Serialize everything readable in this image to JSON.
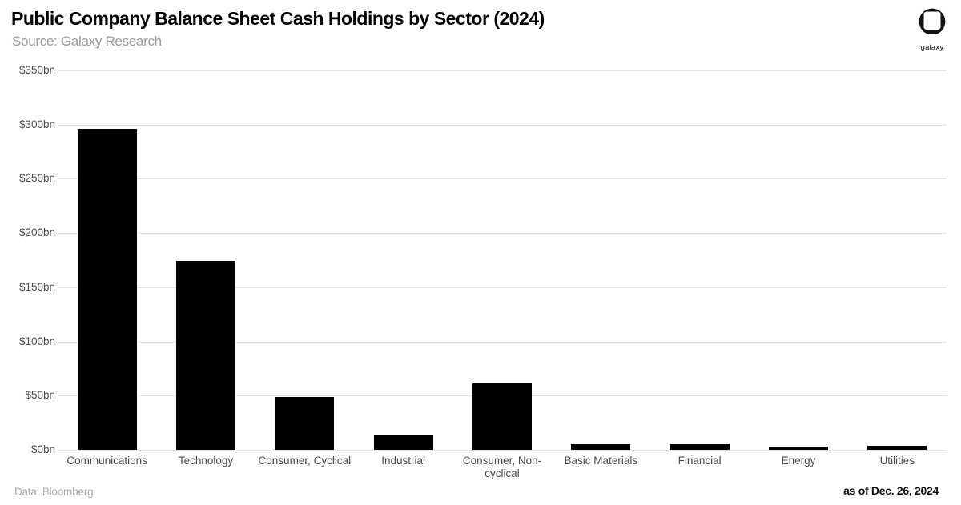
{
  "header": {
    "title": "Public Company Balance Sheet Cash Holdings by Sector (2024)",
    "subtitle": "Source: Galaxy Research"
  },
  "logo": {
    "label": "galaxy"
  },
  "footer": {
    "left": "Data: Bloomberg",
    "right": "as of Dec. 26, 2024"
  },
  "colors": {
    "bar": "#000000",
    "grid": "#e4e4e4",
    "tick_text": "#4a4a4a",
    "subtitle_text": "#9a9a9a",
    "title_text": "#000000"
  },
  "chart_data": {
    "type": "bar",
    "title": "Public Company Balance Sheet Cash Holdings by Sector (2024)",
    "subtitle": "Source: Galaxy Research",
    "categories": [
      "Communications",
      "Technology",
      "Consumer, Cyclical",
      "Industrial",
      "Consumer, Non-cyclical",
      "Basic Materials",
      "Financial",
      "Energy",
      "Utilities"
    ],
    "values": [
      296,
      174,
      49,
      13,
      61,
      5,
      5,
      3,
      4
    ],
    "unit": "$bn",
    "xlabel": "",
    "ylabel": "",
    "ylim": [
      0,
      350
    ],
    "ytick_step": 50,
    "ytick_labels": [
      "$0bn",
      "$50bn",
      "$100bn",
      "$150bn",
      "$200bn",
      "$250bn",
      "$300bn",
      "$350bn"
    ],
    "grid": true,
    "legend": null,
    "bar_color": "#000000"
  }
}
